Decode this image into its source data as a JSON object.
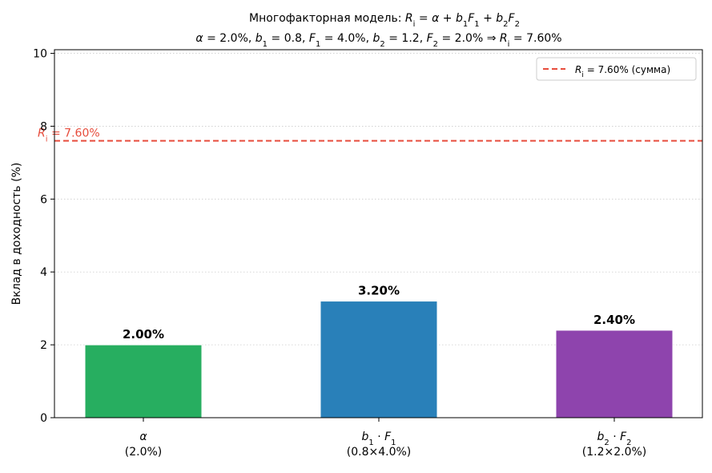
{
  "chart_data": {
    "type": "bar",
    "title_line1": "Многофакторная модель: R_i = α + b_1F_1 + b_2F_2",
    "title_line2": "α = 2.0%, b_1 = 0.8, F_1 = 4.0%, b_2 = 1.2, F_2 = 2.0% ⇒ R_i = 7.60%",
    "ylabel": "Вклад в доходность (%)",
    "ylim": [
      0,
      10.1
    ],
    "yticks": [
      0,
      2,
      4,
      6,
      8,
      10
    ],
    "grid": "y-dotted",
    "categories": [
      {
        "line1": "α",
        "line2": "(2.0%)"
      },
      {
        "line1": "b_1 · F_1",
        "line2": "(0.8×4.0%)"
      },
      {
        "line1": "b_2 · F_2",
        "line2": "(1.2×2.0%)"
      }
    ],
    "values": [
      2.0,
      3.2,
      2.4
    ],
    "value_labels": [
      "2.00%",
      "3.20%",
      "2.40%"
    ],
    "colors": [
      "#27ae60",
      "#2980b9",
      "#8e44ad"
    ],
    "reference_line": {
      "value": 7.6,
      "label": "R_i = 7.60%",
      "legend_label": "R_i = 7.60% (сумма)",
      "color": "#e74c3c"
    },
    "legend_position": "top-right"
  }
}
